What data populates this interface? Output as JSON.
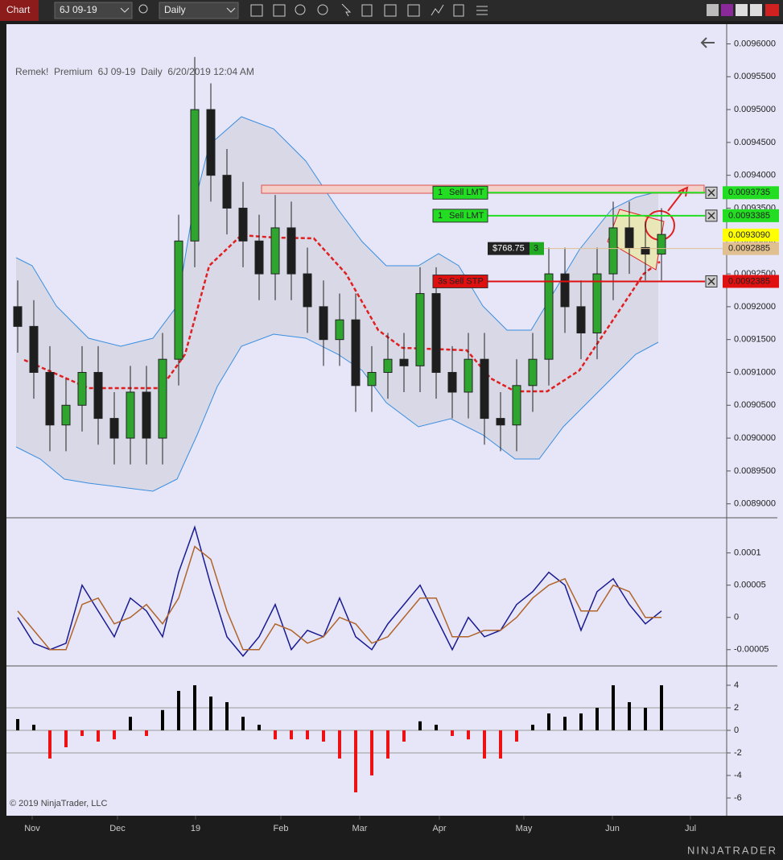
{
  "toolbar": {
    "tab": "Chart",
    "instrument": "6J 09-19",
    "period": "Daily"
  },
  "chart_data": [
    {
      "type": "candlestick",
      "title": "Remek!  Premium  6J 09-19  Daily  6/20/2019 12:04 AM",
      "up_color": "#2fa52f",
      "down_color": "#1e1e1e",
      "open": [
        0.0092,
        0.00917,
        0.0091,
        0.00902,
        0.00905,
        0.0091,
        0.00903,
        0.009,
        0.00907,
        0.009,
        0.00912,
        0.0093,
        0.0095,
        0.0094,
        0.00935,
        0.0093,
        0.00925,
        0.00932,
        0.00925,
        0.0092,
        0.00915,
        0.00918,
        0.00908,
        0.0091,
        0.00912,
        0.00911,
        0.00922,
        0.0091,
        0.00907,
        0.00912,
        0.00903,
        0.00902,
        0.00908,
        0.00912,
        0.00925,
        0.0092,
        0.00916,
        0.00925,
        0.00932,
        0.00929,
        0.00928
      ],
      "high": [
        0.00924,
        0.00921,
        0.00914,
        0.00909,
        0.00914,
        0.00914,
        0.00907,
        0.00911,
        0.00911,
        0.00916,
        0.00934,
        0.00958,
        0.00954,
        0.00944,
        0.00939,
        0.00934,
        0.00937,
        0.00936,
        0.00929,
        0.00924,
        0.00922,
        0.00922,
        0.00914,
        0.00916,
        0.00916,
        0.00926,
        0.00926,
        0.00914,
        0.00916,
        0.00916,
        0.00907,
        0.00912,
        0.00916,
        0.00929,
        0.00929,
        0.00924,
        0.00929,
        0.00936,
        0.00936,
        0.00933,
        0.00935
      ],
      "low": [
        0.00913,
        0.00906,
        0.00898,
        0.00898,
        0.00901,
        0.00899,
        0.00896,
        0.00896,
        0.00896,
        0.00896,
        0.00908,
        0.00926,
        0.00936,
        0.00931,
        0.00926,
        0.00921,
        0.00921,
        0.00921,
        0.00916,
        0.00911,
        0.00911,
        0.00904,
        0.00904,
        0.00906,
        0.00907,
        0.00907,
        0.00906,
        0.00903,
        0.00903,
        0.00899,
        0.00898,
        0.00898,
        0.00904,
        0.00908,
        0.00916,
        0.00912,
        0.00912,
        0.00921,
        0.00925,
        0.00924,
        0.00924
      ],
      "close": [
        0.00917,
        0.0091,
        0.00902,
        0.00905,
        0.0091,
        0.00903,
        0.009,
        0.00907,
        0.009,
        0.00912,
        0.0093,
        0.0095,
        0.0094,
        0.00935,
        0.0093,
        0.00925,
        0.00932,
        0.00925,
        0.0092,
        0.00915,
        0.00918,
        0.00908,
        0.0091,
        0.00912,
        0.00911,
        0.00922,
        0.0091,
        0.00907,
        0.00912,
        0.00903,
        0.00902,
        0.00908,
        0.00912,
        0.00925,
        0.0092,
        0.00916,
        0.00925,
        0.00932,
        0.00929,
        0.00928,
        0.00931
      ],
      "ylim": [
        0.00888,
        0.00963
      ],
      "yticks": [
        {
          "value": 0.0089,
          "label": "0.0089000"
        },
        {
          "value": 0.00895,
          "label": "0.0089500"
        },
        {
          "value": 0.009,
          "label": "0.0090000"
        },
        {
          "value": 0.00905,
          "label": "0.0090500"
        },
        {
          "value": 0.0091,
          "label": "0.0091000"
        },
        {
          "value": 0.00915,
          "label": "0.0091500"
        },
        {
          "value": 0.0092,
          "label": "0.0092000"
        },
        {
          "value": 0.00925,
          "label": "0.0092500"
        },
        {
          "value": 0.0093,
          "label": "0.0093000"
        },
        {
          "value": 0.00935,
          "label": "0.0093500"
        },
        {
          "value": 0.0094,
          "label": "0.0094000"
        },
        {
          "value": 0.00945,
          "label": "0.0094500"
        },
        {
          "value": 0.0095,
          "label": "0.0095000"
        },
        {
          "value": 0.00955,
          "label": "0.0095500"
        },
        {
          "value": 0.0096,
          "label": "0.0096000"
        }
      ],
      "orders": [
        {
          "qty": "1",
          "kind": "Sell LMT",
          "color": "#22dd22",
          "price": {
            "value": 0.0093735,
            "label": "0.0093735"
          }
        },
        {
          "qty": "1",
          "kind": "Sell LMT",
          "color": "#22dd22",
          "price": {
            "value": 0.0093385,
            "label": "0.0093385"
          }
        },
        {
          "qty": "3s",
          "kind": "Sell STP",
          "color": "#e01010",
          "price": {
            "value": 0.0092385,
            "label": "0.0092385"
          }
        }
      ],
      "last_price": {
        "value": 0.009309,
        "label": "0.0093090",
        "color": "#ffff00"
      },
      "position": {
        "pnl": "$768.75",
        "qty": "3",
        "color": "#e0c090",
        "price": {
          "value": 0.0092885,
          "label": "0.0092885"
        }
      }
    },
    {
      "type": "line",
      "series": [
        {
          "color": "#1a1a90",
          "values": [
            0,
            -4e-05,
            -5e-05,
            -4e-05,
            5e-05,
            1e-05,
            -3e-05,
            3e-05,
            1e-05,
            -3e-05,
            7e-05,
            0.00014,
            5e-05,
            -3e-05,
            -6e-05,
            -3e-05,
            2e-05,
            -5e-05,
            -2e-05,
            -3e-05,
            3e-05,
            -3e-05,
            -5e-05,
            -1e-05,
            2e-05,
            5e-05,
            0,
            -5e-05,
            0,
            -3e-05,
            -2e-05,
            2e-05,
            4e-05,
            7e-05,
            5e-05,
            -2e-05,
            4e-05,
            6e-05,
            2e-05,
            -1e-05,
            1e-05
          ]
        },
        {
          "color": "#b0642a",
          "values": [
            1e-05,
            -2e-05,
            -5e-05,
            -5e-05,
            2e-05,
            3e-05,
            -1e-05,
            0,
            2e-05,
            -1e-05,
            3e-05,
            0.00011,
            9e-05,
            1e-05,
            -5e-05,
            -5e-05,
            -1e-05,
            -2e-05,
            -4e-05,
            -3e-05,
            0,
            -1e-05,
            -4e-05,
            -3e-05,
            0,
            3e-05,
            3e-05,
            -3e-05,
            -3e-05,
            -2e-05,
            -2e-05,
            0,
            3e-05,
            5e-05,
            6e-05,
            1e-05,
            1e-05,
            5e-05,
            4e-05,
            0,
            0
          ]
        }
      ],
      "ylim": [
        -7.4e-05,
        0.000152
      ],
      "yticks": [
        -5e-05,
        0,
        5e-05,
        0.0001
      ]
    },
    {
      "type": "bar",
      "pos_color": "#000000",
      "neg_color": "#ee1111",
      "values": [
        1,
        0.5,
        -2.5,
        -1.5,
        -0.5,
        -1,
        -0.8,
        1.2,
        -0.5,
        1.8,
        3.5,
        4,
        3,
        2.5,
        1.2,
        0.5,
        -0.8,
        -0.8,
        -0.8,
        -1,
        -2.5,
        -5.5,
        -4,
        -2.5,
        -1,
        0.8,
        0.5,
        -0.5,
        -0.8,
        -2.5,
        -2.5,
        -1,
        0.5,
        1.5,
        1.2,
        1.5,
        2,
        4,
        2.5,
        2,
        4
      ],
      "ylim": [
        -7.5,
        5.57
      ],
      "yticks": [
        -6,
        -4,
        -2,
        0,
        2,
        4
      ]
    }
  ],
  "months": [
    "Nov",
    "Dec",
    "19",
    "Feb",
    "Mar",
    "Apr",
    "May",
    "Jun",
    "Jul"
  ],
  "copyright": "© 2019 NinjaTrader, LLC",
  "logo": "NINJATRADER"
}
